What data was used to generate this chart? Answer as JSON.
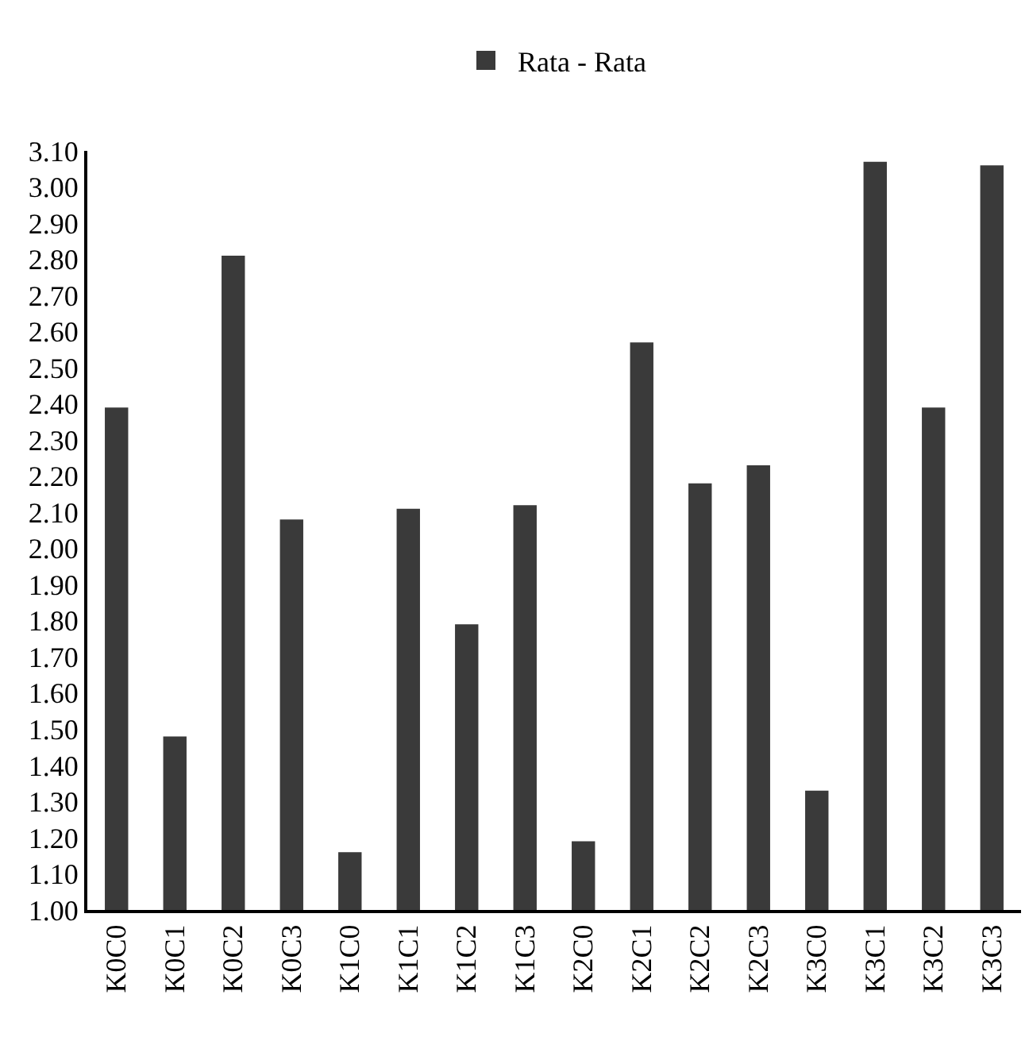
{
  "chart_data": {
    "type": "bar",
    "categories": [
      "K0C0",
      "K0C1",
      "K0C2",
      "K0C3",
      "K1C0",
      "K1C1",
      "K1C2",
      "K1C3",
      "K2C0",
      "K2C1",
      "K2C2",
      "K2C3",
      "K3C0",
      "K3C1",
      "K3C2",
      "K3C3"
    ],
    "series": [
      {
        "name": "Rata - Rata",
        "color": "#3a3a3a",
        "values": [
          2.39,
          1.48,
          2.81,
          2.08,
          1.16,
          2.11,
          1.79,
          2.12,
          1.19,
          2.57,
          2.18,
          2.23,
          1.33,
          3.07,
          2.39,
          3.06
        ]
      }
    ],
    "ylim": [
      1.0,
      3.1
    ],
    "yticks": [
      {
        "value": 1.0,
        "label": "1.00"
      },
      {
        "value": 1.1,
        "label": "1.10"
      },
      {
        "value": 1.2,
        "label": "1.20"
      },
      {
        "value": 1.3,
        "label": "1.30"
      },
      {
        "value": 1.4,
        "label": "1.40"
      },
      {
        "value": 1.5,
        "label": "1.50"
      },
      {
        "value": 1.6,
        "label": "1.60"
      },
      {
        "value": 1.7,
        "label": "1.70"
      },
      {
        "value": 1.8,
        "label": "1.80"
      },
      {
        "value": 1.9,
        "label": "1.90"
      },
      {
        "value": 2.0,
        "label": "2.00"
      },
      {
        "value": 2.1,
        "label": "2.10"
      },
      {
        "value": 2.2,
        "label": "2.20"
      },
      {
        "value": 2.3,
        "label": "2.30"
      },
      {
        "value": 2.4,
        "label": "2.40"
      },
      {
        "value": 2.5,
        "label": "2.50"
      },
      {
        "value": 2.6,
        "label": "2.60"
      },
      {
        "value": 2.7,
        "label": "2.70"
      },
      {
        "value": 2.8,
        "label": "2.80"
      },
      {
        "value": 2.9,
        "label": "2.90"
      },
      {
        "value": 3.0,
        "label": "3.00"
      },
      {
        "value": 3.1,
        "label": "3.10"
      }
    ],
    "legend": "top"
  }
}
